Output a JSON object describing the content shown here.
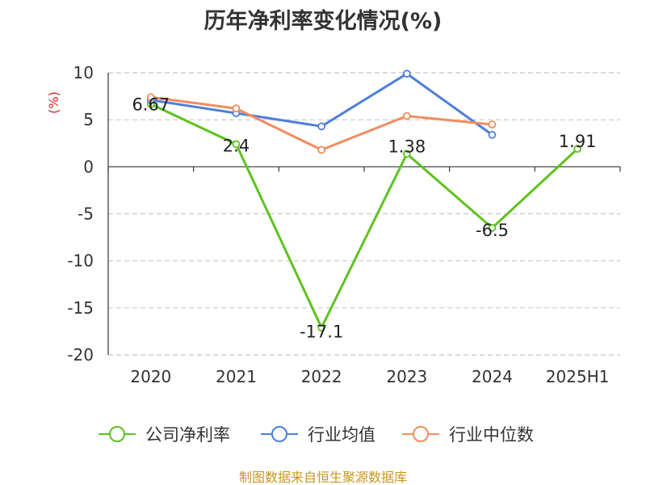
{
  "chart_data": {
    "type": "line",
    "title": "历年净利率变化情况(%)",
    "ylabel": "(%)",
    "categories": [
      "2020",
      "2021",
      "2022",
      "2023",
      "2024",
      "2025H1"
    ],
    "ylim": [
      -20,
      10
    ],
    "yticks": [
      10,
      5,
      0,
      -5,
      -10,
      -15,
      -20
    ],
    "grid": true,
    "legend_position": "bottom",
    "series": [
      {
        "name": "公司净利率",
        "color": "#5ec21f",
        "values": [
          6.67,
          2.4,
          -17.1,
          1.38,
          -6.5,
          1.91
        ],
        "labels": [
          "6.67",
          "2.4",
          "-17.1",
          "1.38",
          "-6.5",
          "1.91"
        ]
      },
      {
        "name": "行业均值",
        "color": "#4e7fdb",
        "values": [
          7.1,
          5.7,
          4.3,
          9.9,
          3.4,
          null
        ]
      },
      {
        "name": "行业中位数",
        "color": "#f28c5e",
        "values": [
          7.4,
          6.2,
          1.8,
          5.4,
          4.5,
          null
        ]
      }
    ]
  },
  "source_text": "制图数据来自恒生聚源数据库"
}
